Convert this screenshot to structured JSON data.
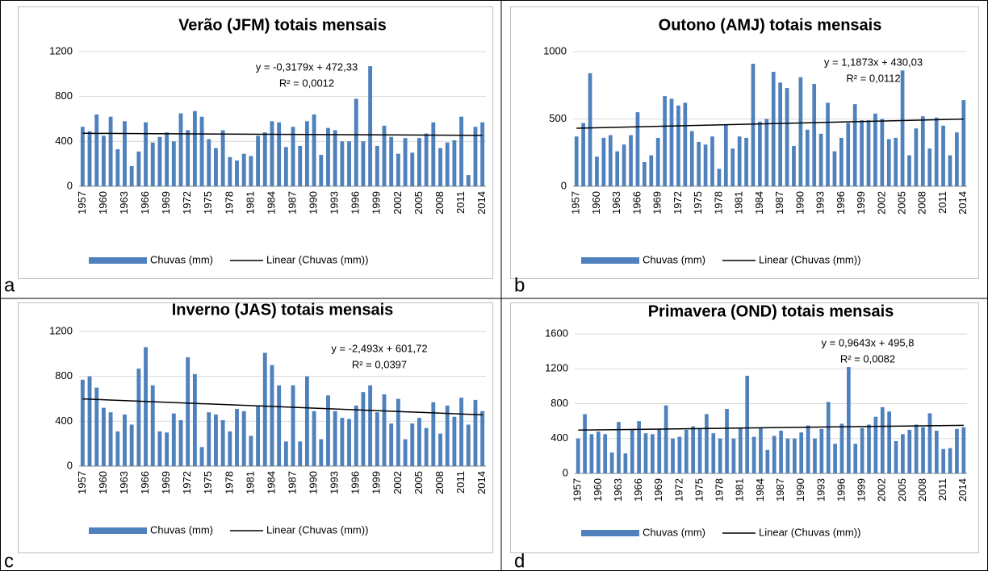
{
  "chart_data": [
    {
      "type": "bar",
      "panel_label": "a",
      "title": "Verão (JFM) totais mensais",
      "categories": [
        "1957",
        null,
        null,
        "1960",
        null,
        null,
        "1963",
        null,
        null,
        "1966",
        null,
        null,
        "1969",
        null,
        null,
        "1972",
        null,
        null,
        "1975",
        null,
        null,
        "1978",
        null,
        null,
        "1981",
        null,
        null,
        "1984",
        null,
        null,
        "1987",
        null,
        null,
        "1990",
        null,
        null,
        "1993",
        null,
        null,
        "1996",
        null,
        null,
        "1999",
        null,
        null,
        "2002",
        null,
        null,
        "2005",
        null,
        null,
        "2008",
        null,
        null,
        "2011",
        null,
        null,
        "2014"
      ],
      "series": [
        {
          "name": "Chuvas (mm)",
          "color": "#4f81bd",
          "values": [
            530,
            490,
            640,
            450,
            620,
            330,
            580,
            180,
            310,
            570,
            390,
            440,
            480,
            400,
            650,
            500,
            670,
            620,
            420,
            340,
            500,
            260,
            230,
            290,
            270,
            450,
            480,
            580,
            570,
            350,
            530,
            360,
            580,
            640,
            280,
            520,
            500,
            400,
            400,
            780,
            400,
            1070,
            360,
            540,
            440,
            290,
            430,
            300,
            430,
            470,
            570,
            340,
            390,
            410,
            620,
            100,
            530,
            570
          ]
        }
      ],
      "trend": {
        "name": "Linear (Chuvas (mm))",
        "color": "#000000",
        "slope": -0.3179,
        "intercept": 472.33,
        "equation": "y = -0,3179x + 472,33",
        "r2_label": "R² = 0,0012"
      },
      "ylim": [
        0,
        1200
      ],
      "yticks": [
        0,
        400,
        800,
        1200
      ],
      "grid": true
    },
    {
      "type": "bar",
      "panel_label": "b",
      "title": "Outono (AMJ) totais mensais",
      "categories": [
        "1957",
        null,
        null,
        "1960",
        null,
        null,
        "1963",
        null,
        null,
        "1966",
        null,
        null,
        "1969",
        null,
        null,
        "1972",
        null,
        null,
        "1975",
        null,
        null,
        "1978",
        null,
        null,
        "1981",
        null,
        null,
        "1984",
        null,
        null,
        "1987",
        null,
        null,
        "1990",
        null,
        null,
        "1993",
        null,
        null,
        "1996",
        null,
        null,
        "1999",
        null,
        null,
        "2002",
        null,
        null,
        "2005",
        null,
        null,
        "2008",
        null,
        null,
        "2011",
        null,
        null,
        "2014"
      ],
      "series": [
        {
          "name": "Chuvas (mm)",
          "color": "#4f81bd",
          "values": [
            370,
            470,
            840,
            220,
            360,
            380,
            260,
            310,
            380,
            550,
            180,
            230,
            360,
            670,
            650,
            600,
            620,
            410,
            330,
            310,
            370,
            130,
            460,
            280,
            370,
            360,
            910,
            480,
            500,
            850,
            770,
            730,
            300,
            810,
            420,
            760,
            390,
            620,
            260,
            360,
            470,
            610,
            490,
            490,
            540,
            500,
            350,
            360,
            860,
            230,
            430,
            520,
            280,
            510,
            450,
            230,
            400,
            640
          ]
        }
      ],
      "trend": {
        "name": "Linear (Chuvas (mm))",
        "color": "#000000",
        "slope": 1.1873,
        "intercept": 430.03,
        "equation": "y = 1,1873x + 430,03",
        "r2_label": "R² = 0,0112"
      },
      "ylim": [
        0,
        1000
      ],
      "yticks": [
        0,
        500,
        1000
      ],
      "grid": true
    },
    {
      "type": "bar",
      "panel_label": "c",
      "title": "Inverno (JAS) totais mensais",
      "categories": [
        "1957",
        null,
        null,
        "1960",
        null,
        null,
        "1963",
        null,
        null,
        "1966",
        null,
        null,
        "1969",
        null,
        null,
        "1972",
        null,
        null,
        "1975",
        null,
        null,
        "1978",
        null,
        null,
        "1981",
        null,
        null,
        "1984",
        null,
        null,
        "1987",
        null,
        null,
        "1990",
        null,
        null,
        "1993",
        null,
        null,
        "1996",
        null,
        null,
        "1999",
        null,
        null,
        "2002",
        null,
        null,
        "2005",
        null,
        null,
        "2008",
        null,
        null,
        "2011",
        null,
        null,
        "2014"
      ],
      "series": [
        {
          "name": "Chuvas (mm)",
          "color": "#4f81bd",
          "values": [
            770,
            800,
            700,
            520,
            480,
            310,
            460,
            370,
            870,
            1060,
            720,
            310,
            300,
            470,
            410,
            970,
            820,
            170,
            480,
            460,
            410,
            310,
            510,
            490,
            270,
            540,
            1010,
            900,
            720,
            220,
            720,
            220,
            800,
            490,
            240,
            630,
            490,
            430,
            420,
            540,
            660,
            720,
            480,
            640,
            380,
            600,
            240,
            380,
            430,
            340,
            570,
            290,
            540,
            440,
            610,
            370,
            590,
            490
          ]
        }
      ],
      "trend": {
        "name": "Linear (Chuvas (mm))",
        "color": "#000000",
        "slope": -2.493,
        "intercept": 601.72,
        "equation": "y = -2,493x + 601,72",
        "r2_label": "R² = 0,0397"
      },
      "ylim": [
        0,
        1200
      ],
      "yticks": [
        0,
        400,
        800,
        1200
      ],
      "grid": true
    },
    {
      "type": "bar",
      "panel_label": "d",
      "title": "Primavera (OND) totais mensais",
      "categories": [
        "1957",
        null,
        null,
        "1960",
        null,
        null,
        "1963",
        null,
        null,
        "1966",
        null,
        null,
        "1969",
        null,
        null,
        "1972",
        null,
        null,
        "1975",
        null,
        null,
        "1978",
        null,
        null,
        "1981",
        null,
        null,
        "1984",
        null,
        null,
        "1987",
        null,
        null,
        "1990",
        null,
        null,
        "1993",
        null,
        null,
        "1996",
        null,
        null,
        "1999",
        null,
        null,
        "2002",
        null,
        null,
        "2005",
        null,
        null,
        "2008",
        null,
        null,
        "2011",
        null,
        null,
        "2014"
      ],
      "series": [
        {
          "name": "Chuvas (mm)",
          "color": "#4f81bd",
          "values": [
            400,
            680,
            450,
            480,
            450,
            240,
            590,
            230,
            500,
            600,
            460,
            450,
            510,
            780,
            400,
            420,
            500,
            540,
            510,
            680,
            460,
            400,
            740,
            400,
            520,
            1120,
            420,
            520,
            270,
            430,
            490,
            400,
            400,
            470,
            550,
            400,
            510,
            820,
            340,
            570,
            1220,
            340,
            520,
            560,
            650,
            760,
            710,
            370,
            450,
            500,
            560,
            530,
            690,
            490,
            280,
            290,
            510,
            530
          ]
        }
      ],
      "trend": {
        "name": "Linear (Chuvas (mm))",
        "color": "#000000",
        "slope": 0.9643,
        "intercept": 495.8,
        "equation": "y = 0,9643x + 495,8",
        "r2_label": "R² = 0,0082"
      },
      "ylim": [
        0,
        1600
      ],
      "yticks": [
        0,
        400,
        800,
        1200,
        1600
      ],
      "grid": true
    }
  ]
}
